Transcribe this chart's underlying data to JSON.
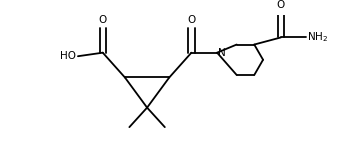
{
  "background_color": "#ffffff",
  "line_color": "#000000",
  "line_width": 1.3,
  "font_size_labels": 7.5,
  "figsize": [
    3.58,
    1.42
  ],
  "dpi": 100,
  "xlim": [
    0,
    358
  ],
  "ylim": [
    0,
    142
  ]
}
